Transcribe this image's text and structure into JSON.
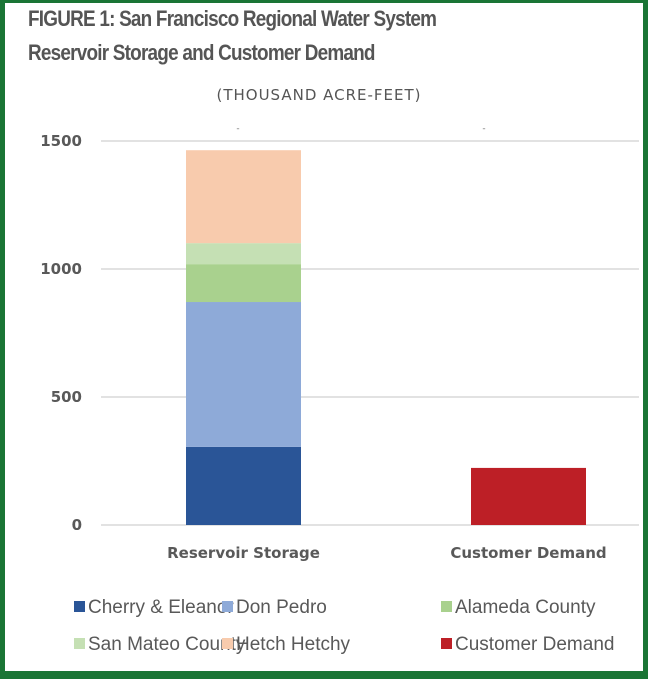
{
  "chart_data": {
    "type": "bar",
    "stacked": true,
    "title": "FIGURE 1: San Francisco Regional Water System",
    "title_line2": "Reservoir Storage and Customer Demand",
    "subtitle": "(THOUSAND ACRE-FEET)",
    "xlabel": "",
    "ylabel": "",
    "ylim": [
      0,
      1500
    ],
    "yticks": [
      "0",
      "500",
      "1000",
      "1500"
    ],
    "ytick_values": [
      0,
      500,
      1000,
      1500
    ],
    "grid": true,
    "categories": [
      "Reservoir Storage",
      "Customer Demand"
    ],
    "data_labels": [
      "-",
      "-"
    ],
    "series": [
      {
        "name": "Cherry & Eleanor",
        "color": "#2a5597",
        "values": [
          305,
          0
        ]
      },
      {
        "name": "Don Pedro",
        "color": "#8eaad8",
        "values": [
          566,
          0
        ]
      },
      {
        "name": "Alameda County",
        "color": "#a9d18e",
        "values": [
          148,
          0
        ]
      },
      {
        "name": "San Mateo County",
        "color": "#c5e0b4",
        "values": [
          82,
          0
        ]
      },
      {
        "name": "Hetch Hetchy",
        "color": "#f8cbad",
        "values": [
          363,
          0
        ]
      },
      {
        "name": "Customer Demand",
        "color": "#bd1f26",
        "values": [
          0,
          223
        ]
      }
    ],
    "legend_position": "bottom"
  },
  "frame": {
    "border_color": "#1a7535"
  }
}
